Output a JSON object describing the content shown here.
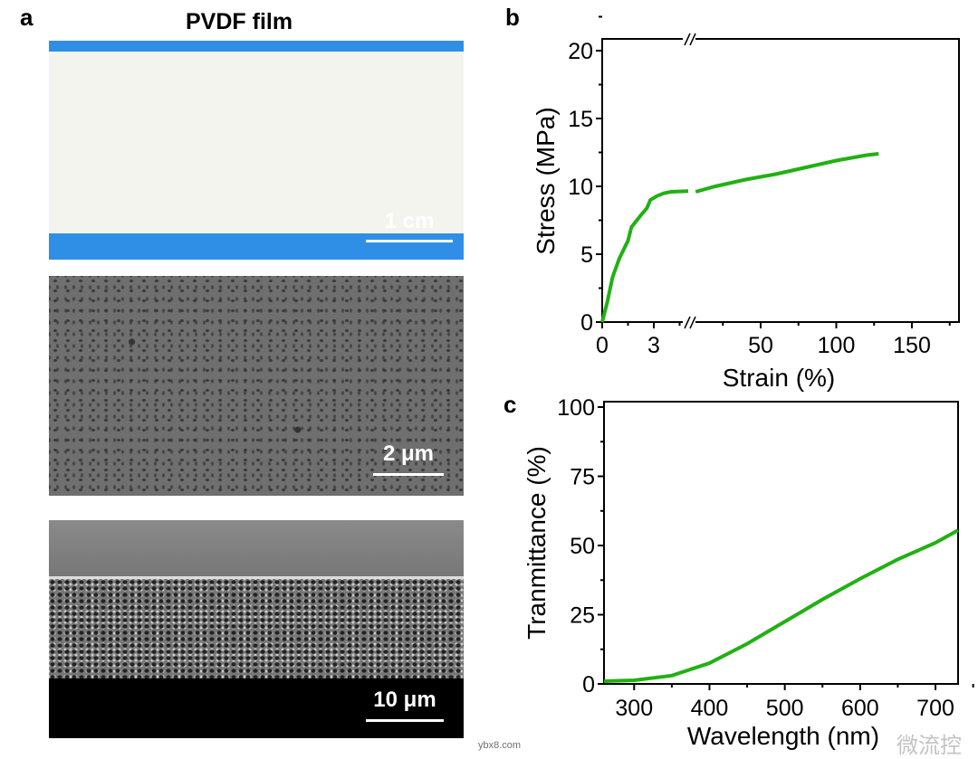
{
  "panel_a": {
    "label": "a",
    "title": "PVDF film",
    "scale_bars": [
      "1 cm",
      "2 μm",
      "10 μm"
    ]
  },
  "watermark": {
    "text": "微流控",
    "site": "ybx8.com"
  },
  "chart_data": [
    {
      "panel": "b",
      "type": "line",
      "xlabel": "Strain (%)",
      "ylabel": "Stress (MPa)",
      "ylim": [
        0,
        21
      ],
      "broken_x_axis": true,
      "segments": [
        {
          "xlim": [
            0,
            5.2
          ],
          "ticks": [
            "0",
            "3"
          ],
          "x": [
            0,
            0.3,
            0.6,
            1,
            1.5,
            1.7,
            2.2,
            2.6,
            2.8,
            3.2,
            3.6,
            4,
            5
          ],
          "y": [
            0,
            1.5,
            3.3,
            4.7,
            6,
            7,
            7.8,
            8.4,
            9,
            9.3,
            9.5,
            9.6,
            9.65
          ]
        },
        {
          "xlim": [
            4,
            180
          ],
          "ticks": [
            "50",
            "100",
            "150"
          ],
          "x": [
            7,
            20,
            40,
            60,
            80,
            100,
            120,
            128
          ],
          "y": [
            9.6,
            10,
            10.5,
            10.9,
            11.4,
            11.9,
            12.3,
            12.4
          ]
        }
      ],
      "yticks": [
        "0",
        "5",
        "10",
        "15",
        "20"
      ],
      "color": "#22b014"
    },
    {
      "panel": "c",
      "type": "line",
      "xlabel": "Wavelength (nm)",
      "ylabel": "Tranmittance (%)",
      "xlim": [
        260,
        730
      ],
      "ylim": [
        0,
        100
      ],
      "xticks": [
        "300",
        "400",
        "500",
        "600",
        "700"
      ],
      "yticks": [
        "0",
        "25",
        "50",
        "75",
        "100"
      ],
      "x": [
        260,
        300,
        350,
        400,
        450,
        500,
        550,
        600,
        650,
        700,
        730
      ],
      "y": [
        1,
        1.3,
        3,
        7.5,
        14.5,
        22.5,
        30.5,
        38,
        45,
        51,
        55.5
      ],
      "color": "#22b014"
    }
  ],
  "labels": {
    "b": "b",
    "c": "c"
  }
}
